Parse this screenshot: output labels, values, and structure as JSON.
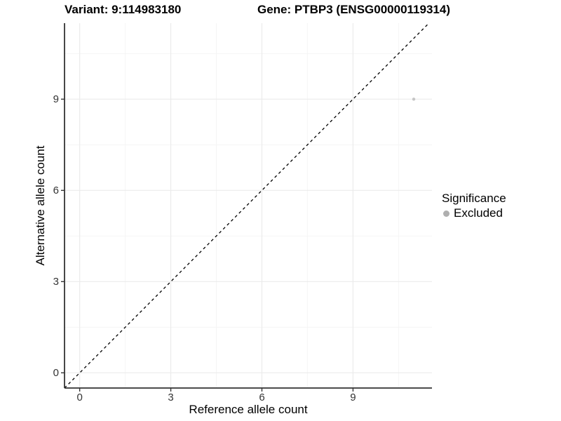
{
  "titles": {
    "left": "Variant: 9:114983180",
    "right": "Gene: PTBP3 (ENSG00000119314)"
  },
  "chart_data": {
    "type": "scatter",
    "xlabel": "Reference allele count",
    "ylabel": "Alternative allele count",
    "xlim": [
      -0.5,
      11.6
    ],
    "ylim": [
      -0.5,
      11.5
    ],
    "xticks": [
      0,
      3,
      6,
      9
    ],
    "yticks": [
      0,
      3,
      6,
      9
    ],
    "xticks_minor": [
      1.5,
      4.5,
      7.5,
      10.5
    ],
    "yticks_minor": [
      1.5,
      4.5,
      7.5,
      10.5
    ],
    "grid": true,
    "abline": {
      "slope": 1,
      "intercept": 0,
      "style": "dashed",
      "color": "#000000"
    },
    "points": [
      {
        "x": 11,
        "y": 9,
        "series": "Excluded",
        "color": "#c5c5c5",
        "radius": 2.2
      }
    ],
    "legend": {
      "position": "right",
      "title": "Significance",
      "items": [
        {
          "label": "Excluded",
          "color": "#afafaf"
        }
      ]
    }
  },
  "colors": {
    "axis_line": "#333333",
    "tick_label": "#333333",
    "grid_major": "#ebebeb",
    "grid_minor": "#f5f5f5",
    "background": "#ffffff"
  }
}
